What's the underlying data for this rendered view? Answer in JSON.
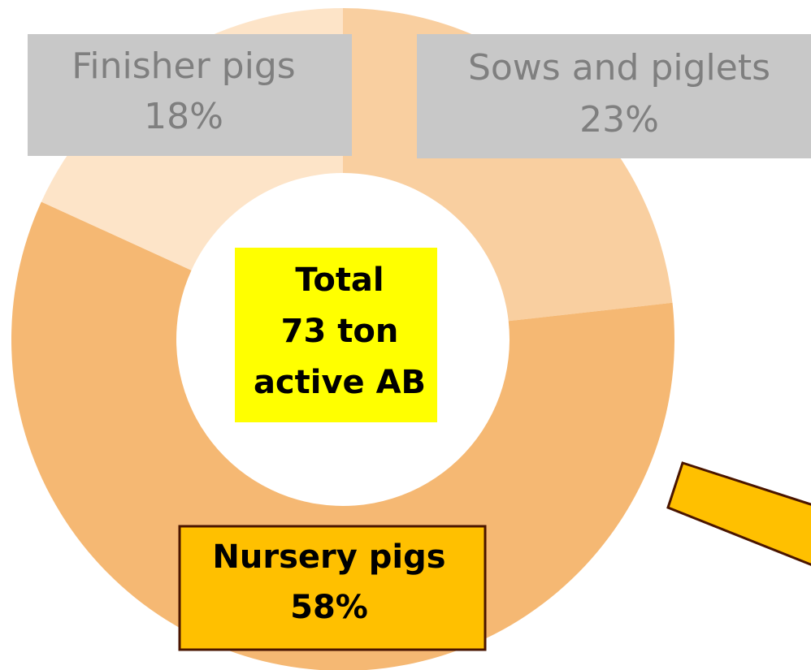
{
  "chart_data": {
    "type": "donut",
    "categories": [
      "Sows and piglets",
      "Nursery pigs",
      "Finisher pigs"
    ],
    "values": [
      23,
      58,
      18
    ],
    "value_labels": [
      "23%",
      "58%",
      "18%"
    ],
    "colors": [
      "#f9cfa0",
      "#f5b873",
      "#fde4c8"
    ],
    "annotation": [
      "Total",
      "73 ton",
      "active AB"
    ]
  }
}
